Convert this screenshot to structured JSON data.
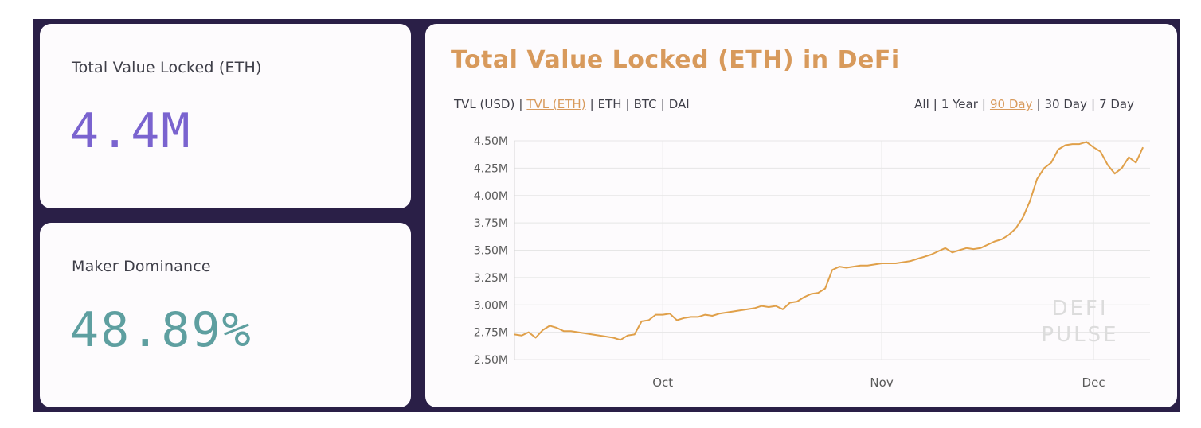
{
  "cards": {
    "tvl": {
      "label": "Total Value Locked (ETH)",
      "value": "4.4M"
    },
    "maker": {
      "label": "Maker Dominance",
      "value": "48.89%"
    }
  },
  "chart_panel": {
    "title": "Total Value Locked (ETH) in DeFi",
    "metric_options": [
      "TVL (USD)",
      "TVL (ETH)",
      "ETH",
      "BTC",
      "DAI"
    ],
    "metric_selected": "TVL (ETH)",
    "range_options": [
      "All",
      "1 Year",
      "90 Day",
      "30 Day",
      "7 Day"
    ],
    "range_selected": "90 Day",
    "watermark_line1": "DEFI",
    "watermark_line2": "PULSE"
  },
  "colors": {
    "frame": "#2a1f47",
    "card": "#fdfbfd",
    "tvl_value": "#7a63cf",
    "maker_value": "#5e9fa0",
    "accent": "#d89a5c",
    "line": "#e0a04a",
    "grid": "#e6e6e6"
  },
  "chart_data": {
    "type": "line",
    "title": "Total Value Locked (ETH) in DeFi",
    "xlabel": "",
    "ylabel": "",
    "ylim": [
      2.5,
      4.5
    ],
    "y_ticks": [
      2.5,
      2.75,
      3.0,
      3.25,
      3.5,
      3.75,
      4.0,
      4.25,
      4.5
    ],
    "y_tick_labels": [
      "2.50M",
      "2.75M",
      "3.00M",
      "3.25M",
      "3.50M",
      "3.75M",
      "4.00M",
      "4.25M",
      "4.50M"
    ],
    "x_range": [
      "2019-09-10",
      "2019-12-09"
    ],
    "x_ticks": [
      "2019-10-01",
      "2019-11-01",
      "2019-12-01"
    ],
    "x_tick_labels": [
      "Oct",
      "Nov",
      "Dec"
    ],
    "grid": true,
    "legend": "none",
    "series": [
      {
        "x": [
          "2019-09-10",
          "2019-09-11",
          "2019-09-12",
          "2019-09-13",
          "2019-09-14",
          "2019-09-15",
          "2019-09-16",
          "2019-09-17",
          "2019-09-18",
          "2019-09-19",
          "2019-09-20",
          "2019-09-21",
          "2019-09-22",
          "2019-09-23",
          "2019-09-24",
          "2019-09-25",
          "2019-09-26",
          "2019-09-27",
          "2019-09-28",
          "2019-09-29",
          "2019-09-30",
          "2019-10-01",
          "2019-10-02",
          "2019-10-03",
          "2019-10-04",
          "2019-10-05",
          "2019-10-06",
          "2019-10-07",
          "2019-10-08",
          "2019-10-09",
          "2019-10-10",
          "2019-10-11",
          "2019-10-12",
          "2019-10-13",
          "2019-10-14",
          "2019-10-15",
          "2019-10-16",
          "2019-10-17",
          "2019-10-18",
          "2019-10-19",
          "2019-10-20",
          "2019-10-21",
          "2019-10-22",
          "2019-10-23",
          "2019-10-24",
          "2019-10-25",
          "2019-10-26",
          "2019-10-27",
          "2019-10-28",
          "2019-10-29",
          "2019-10-30",
          "2019-10-31",
          "2019-11-01",
          "2019-11-02",
          "2019-11-03",
          "2019-11-04",
          "2019-11-05",
          "2019-11-06",
          "2019-11-07",
          "2019-11-08",
          "2019-11-09",
          "2019-11-10",
          "2019-11-11",
          "2019-11-12",
          "2019-11-13",
          "2019-11-14",
          "2019-11-15",
          "2019-11-16",
          "2019-11-17",
          "2019-11-18",
          "2019-11-19",
          "2019-11-20",
          "2019-11-21",
          "2019-11-22",
          "2019-11-23",
          "2019-11-24",
          "2019-11-25",
          "2019-11-26",
          "2019-11-27",
          "2019-11-28",
          "2019-11-29",
          "2019-11-30",
          "2019-12-01",
          "2019-12-02",
          "2019-12-03",
          "2019-12-04",
          "2019-12-05",
          "2019-12-06",
          "2019-12-07",
          "2019-12-08"
        ],
        "values": [
          2.73,
          2.72,
          2.75,
          2.7,
          2.77,
          2.81,
          2.79,
          2.76,
          2.76,
          2.75,
          2.74,
          2.73,
          2.72,
          2.71,
          2.7,
          2.68,
          2.72,
          2.73,
          2.85,
          2.86,
          2.91,
          2.91,
          2.92,
          2.86,
          2.88,
          2.89,
          2.89,
          2.91,
          2.9,
          2.92,
          2.93,
          2.94,
          2.95,
          2.96,
          2.97,
          2.99,
          2.98,
          2.99,
          2.96,
          3.02,
          3.03,
          3.07,
          3.1,
          3.11,
          3.15,
          3.32,
          3.35,
          3.34,
          3.35,
          3.36,
          3.36,
          3.37,
          3.38,
          3.38,
          3.38,
          3.39,
          3.4,
          3.42,
          3.44,
          3.46,
          3.49,
          3.52,
          3.48,
          3.5,
          3.52,
          3.51,
          3.52,
          3.55,
          3.58,
          3.6,
          3.64,
          3.7,
          3.8,
          3.95,
          4.15,
          4.25,
          4.3,
          4.42,
          4.46,
          4.47,
          4.47,
          4.49,
          4.44,
          4.4,
          4.28,
          4.2,
          4.25,
          4.35,
          4.3,
          4.44
        ]
      }
    ]
  }
}
